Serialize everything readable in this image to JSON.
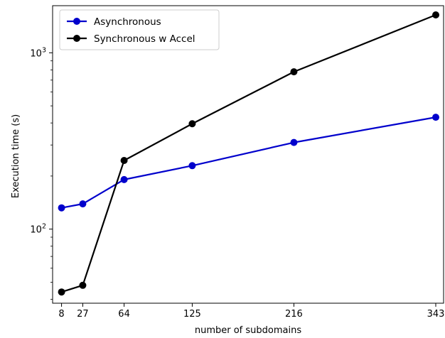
{
  "chart_data": {
    "type": "line",
    "xlabel": "number of subdomains",
    "ylabel": "Execution time (s)",
    "x": [
      8,
      27,
      64,
      125,
      216,
      343
    ],
    "xticks": [
      "8",
      "27",
      "64",
      "125",
      "216",
      "343"
    ],
    "xlim": [
      0,
      350
    ],
    "yscale": "log",
    "ylim": [
      38,
      1850
    ],
    "yticks": [
      {
        "value": 100,
        "base": "10",
        "exp": "2"
      },
      {
        "value": 1000,
        "base": "10",
        "exp": "3"
      }
    ],
    "grid": false,
    "legend_position": "top-left",
    "series": [
      {
        "name": "Asynchronous",
        "color": "#0000cc",
        "values": [
          132,
          139,
          191,
          229,
          310,
          431
        ]
      },
      {
        "name": "Synchronous w Accel",
        "color": "#000000",
        "values": [
          44,
          48,
          245,
          396,
          780,
          1640
        ]
      }
    ]
  }
}
